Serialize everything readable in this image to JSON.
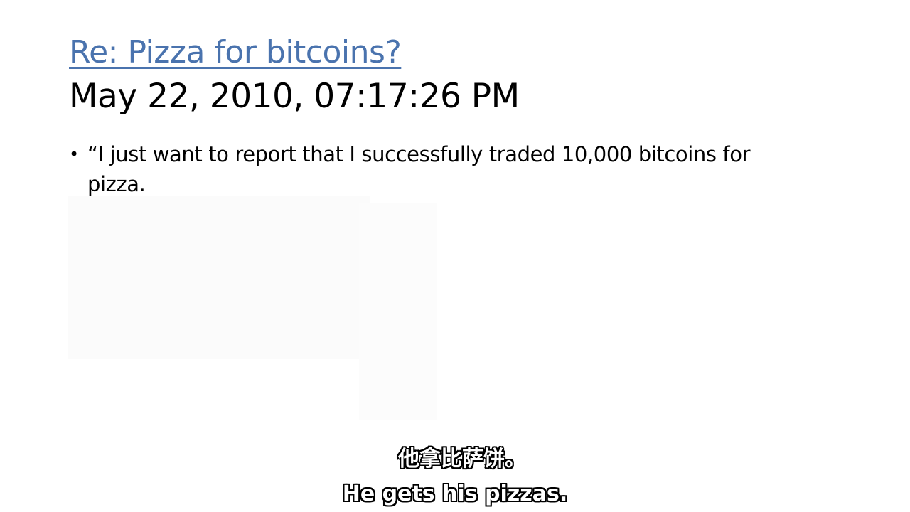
{
  "slide": {
    "title_link": "Re: Pizza for bitcoins?",
    "timestamp": "May 22, 2010, 07:17:26 PM",
    "bullets": [
      {
        "marker": "•",
        "text": "“I just want to report that I successfully traded 10,000 bitcoins for pizza."
      }
    ]
  },
  "subtitles": {
    "chinese": "他拿比萨饼。",
    "english": "He gets his pizzas."
  },
  "colors": {
    "title_link": "#4a73ae",
    "body_text": "#000000",
    "background": "#ffffff",
    "subtitle_fill": "#ffffff",
    "subtitle_outline": "#000000"
  }
}
